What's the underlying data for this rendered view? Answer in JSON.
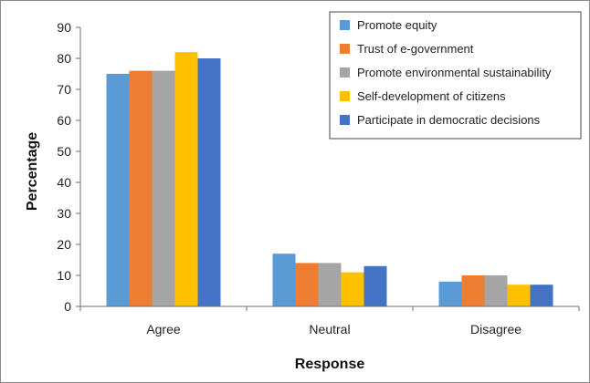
{
  "chart_data": {
    "type": "bar",
    "title": "",
    "xlabel": "Response",
    "ylabel": "Percentage",
    "categories": [
      "Agree",
      "Neutral",
      "Disagree"
    ],
    "ylim": [
      0,
      90
    ],
    "yticks": [
      0,
      10,
      20,
      30,
      40,
      50,
      60,
      70,
      80,
      90
    ],
    "grid": false,
    "legend_position": "top-right",
    "series": [
      {
        "name": "Promote equity",
        "color": "#5B9BD5",
        "values": [
          75,
          17,
          8
        ]
      },
      {
        "name": "Trust of e-government",
        "color": "#ED7D31",
        "values": [
          76,
          14,
          10
        ]
      },
      {
        "name": "Promote environmental sustainability",
        "color": "#A5A5A5",
        "values": [
          76,
          14,
          10
        ]
      },
      {
        "name": "Self-development of citizens",
        "color": "#FFC000",
        "values": [
          82,
          11,
          7
        ]
      },
      {
        "name": "Participate in democratic decisions",
        "color": "#4472C4",
        "values": [
          80,
          13,
          7
        ]
      }
    ]
  }
}
